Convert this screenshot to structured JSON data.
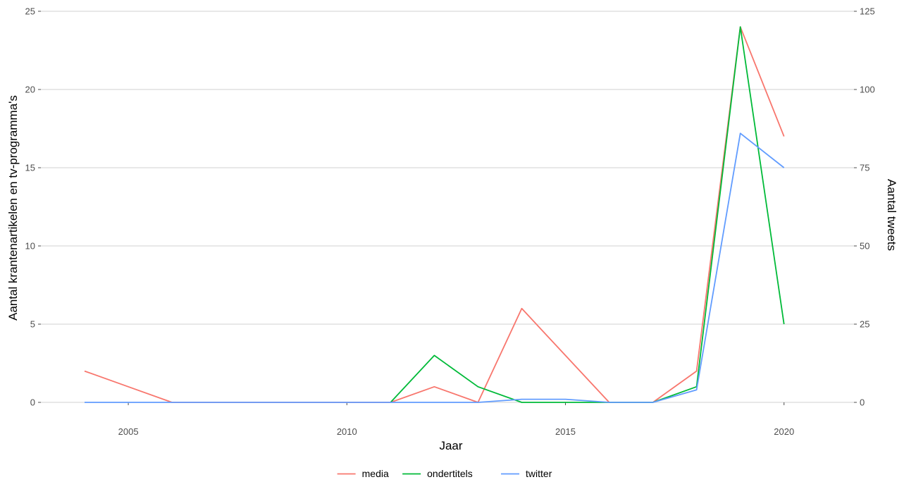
{
  "chart_data": {
    "type": "line",
    "x": [
      2004,
      2005,
      2006,
      2007,
      2008,
      2009,
      2010,
      2011,
      2012,
      2013,
      2014,
      2015,
      2016,
      2017,
      2018,
      2019,
      2020
    ],
    "series": [
      {
        "name": "media",
        "axis": "left",
        "color": "#F8766D",
        "values": [
          2,
          1,
          0,
          0,
          0,
          0,
          0,
          0,
          1,
          0,
          6,
          3,
          0,
          0,
          2,
          24,
          17
        ]
      },
      {
        "name": "ondertitels",
        "axis": "left",
        "color": "#00BA38",
        "values": [
          null,
          null,
          null,
          null,
          null,
          null,
          null,
          0,
          3,
          1,
          0,
          0,
          0,
          0,
          1,
          24,
          5
        ]
      },
      {
        "name": "twitter",
        "axis": "right",
        "color": "#619CFF",
        "values": [
          0,
          0,
          0,
          0,
          0,
          0,
          0,
          0,
          0,
          0,
          1,
          1,
          0,
          0,
          4,
          86,
          75
        ]
      }
    ],
    "xlabel": "Jaar",
    "ylabel": "Aantal krantenartikelen en tv-programma's",
    "y2label": "Aantal tweets",
    "xticks": [
      2005,
      2010,
      2015,
      2020
    ],
    "yticks": [
      0,
      5,
      10,
      15,
      20,
      25
    ],
    "y2ticks": [
      0,
      25,
      50,
      75,
      100,
      125
    ],
    "xlim": [
      2003,
      2021.6
    ],
    "ylim": [
      0,
      25
    ],
    "y2lim": [
      0,
      125
    ],
    "grid": "horizontal",
    "legend_position": "bottom"
  }
}
